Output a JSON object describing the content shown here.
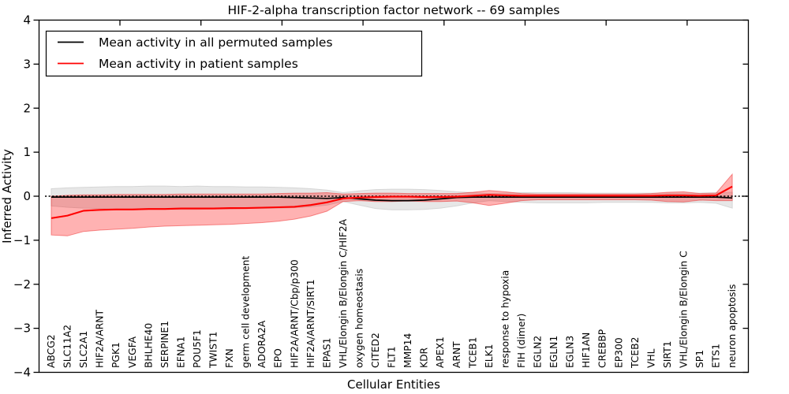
{
  "chart_data": {
    "type": "line",
    "title": "HIF-2-alpha transcription factor network -- 69 samples",
    "xlabel": "Cellular Entities",
    "ylabel": "Inferred Activity",
    "ylim": [
      -4,
      4
    ],
    "yticks": [
      4,
      3,
      2,
      1,
      0,
      -1,
      -2,
      -3,
      -4
    ],
    "grid": false,
    "legend_position": "upper left",
    "zero_line": {
      "value": 0,
      "style": "dashed",
      "color": "#000000"
    },
    "categories": [
      "ABCG2",
      "SLC11A2",
      "SLC2A1",
      "HIF2A/ARNT",
      "PGK1",
      "VEGFA",
      "BHLHE40",
      "SERPINE1",
      "EFNA1",
      "POU5F1",
      "TWIST1",
      "FXN",
      "germ cell development",
      "ADORA2A",
      "EPO",
      "HIF2A/ARNT/Cbp/p300",
      "HIF2A/ARNT/SIRT1",
      "EPAS1",
      "VHL/Elongin B/Elongin C/HIF2A",
      "oxygen homeostasis",
      "CITED2",
      "FLT1",
      "MMP14",
      "KDR",
      "APEX1",
      "ARNT",
      "TCEB1",
      "ELK1",
      "response to hypoxia",
      "FIH (dimer)",
      "EGLN2",
      "EGLN1",
      "EGLN3",
      "HIF1AN",
      "CREBBP",
      "EP300",
      "TCEB2",
      "VHL",
      "SIRT1",
      "VHL/Elongin B/Elongin C",
      "SP1",
      "ETS1",
      "neuron apoptosis"
    ],
    "series": [
      {
        "name": "Mean activity in all permuted samples",
        "color": "#000000",
        "band_color": "#e7e7e7",
        "band_edge": "#d6d6d6",
        "values": [
          -0.02,
          -0.02,
          -0.02,
          -0.02,
          -0.02,
          -0.02,
          -0.02,
          -0.02,
          -0.02,
          -0.02,
          -0.02,
          -0.02,
          -0.02,
          -0.02,
          -0.02,
          -0.03,
          -0.04,
          -0.05,
          -0.03,
          -0.06,
          -0.09,
          -0.1,
          -0.1,
          -0.09,
          -0.06,
          -0.03,
          -0.02,
          -0.02,
          -0.02,
          -0.02,
          -0.02,
          -0.02,
          -0.02,
          -0.02,
          -0.02,
          -0.02,
          -0.02,
          -0.02,
          -0.02,
          -0.02,
          -0.02,
          -0.02,
          -0.04
        ],
        "band_upper": [
          0.17,
          0.19,
          0.2,
          0.21,
          0.22,
          0.22,
          0.23,
          0.23,
          0.22,
          0.23,
          0.22,
          0.22,
          0.21,
          0.21,
          0.2,
          0.19,
          0.17,
          0.14,
          0.08,
          0.12,
          0.15,
          0.16,
          0.16,
          0.15,
          0.13,
          0.1,
          0.08,
          0.06,
          0.07,
          0.08,
          0.08,
          0.08,
          0.08,
          0.07,
          0.07,
          0.07,
          0.07,
          0.07,
          0.07,
          0.07,
          0.07,
          0.08,
          0.09
        ],
        "band_lower": [
          -0.22,
          -0.25,
          -0.27,
          -0.28,
          -0.29,
          -0.3,
          -0.3,
          -0.3,
          -0.3,
          -0.3,
          -0.29,
          -0.29,
          -0.28,
          -0.28,
          -0.27,
          -0.26,
          -0.24,
          -0.2,
          -0.12,
          -0.2,
          -0.28,
          -0.31,
          -0.31,
          -0.3,
          -0.27,
          -0.22,
          -0.15,
          -0.1,
          -0.12,
          -0.14,
          -0.15,
          -0.15,
          -0.15,
          -0.15,
          -0.14,
          -0.14,
          -0.14,
          -0.14,
          -0.15,
          -0.15,
          -0.14,
          -0.16,
          -0.27
        ]
      },
      {
        "name": "Mean activity in patient samples",
        "color": "#ff0000",
        "band_color": "rgba(255,0,0,0.30)",
        "band_edge": "rgba(235,20,20,0.45)",
        "values": [
          -0.5,
          -0.44,
          -0.33,
          -0.31,
          -0.3,
          -0.3,
          -0.29,
          -0.29,
          -0.28,
          -0.28,
          -0.28,
          -0.27,
          -0.27,
          -0.26,
          -0.25,
          -0.24,
          -0.2,
          -0.14,
          -0.05,
          -0.03,
          -0.02,
          -0.01,
          -0.01,
          -0.02,
          -0.02,
          -0.01,
          0.01,
          0.03,
          0.02,
          0.01,
          0.01,
          0.01,
          0.01,
          0.01,
          0.01,
          0.01,
          0.01,
          0.01,
          0.02,
          0.02,
          0.01,
          0.02,
          0.22
        ],
        "band_upper": [
          0.0,
          0.02,
          0.03,
          0.03,
          0.04,
          0.04,
          0.04,
          0.04,
          0.05,
          0.05,
          0.05,
          0.05,
          0.05,
          0.05,
          0.06,
          0.07,
          0.07,
          0.08,
          0.05,
          0.06,
          0.07,
          0.07,
          0.06,
          0.06,
          0.06,
          0.06,
          0.09,
          0.13,
          0.1,
          0.06,
          0.05,
          0.05,
          0.05,
          0.05,
          0.05,
          0.05,
          0.05,
          0.06,
          0.09,
          0.1,
          0.06,
          0.07,
          0.5
        ],
        "band_lower": [
          -0.88,
          -0.9,
          -0.8,
          -0.77,
          -0.75,
          -0.73,
          -0.7,
          -0.68,
          -0.67,
          -0.66,
          -0.65,
          -0.64,
          -0.62,
          -0.6,
          -0.57,
          -0.52,
          -0.45,
          -0.34,
          -0.12,
          -0.1,
          -0.12,
          -0.12,
          -0.11,
          -0.12,
          -0.12,
          -0.11,
          -0.15,
          -0.21,
          -0.16,
          -0.1,
          -0.08,
          -0.08,
          -0.08,
          -0.08,
          -0.08,
          -0.08,
          -0.08,
          -0.09,
          -0.12,
          -0.13,
          -0.09,
          -0.1,
          -0.1
        ]
      }
    ]
  }
}
